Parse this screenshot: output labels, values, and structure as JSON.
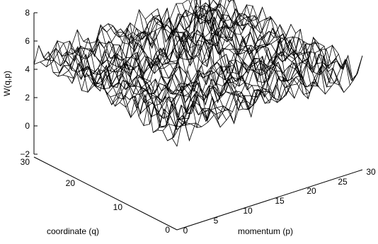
{
  "chart_data": {
    "type": "surface",
    "title": "",
    "zlabel": "W(q,p)",
    "xlabel": "momentum (p)",
    "ylabel": "coordinate (q)",
    "z_ticks": [
      "8",
      "6",
      "4",
      "2",
      "0",
      "−2"
    ],
    "p_ticks": [
      "0",
      "5",
      "10",
      "15",
      "20",
      "25",
      "30"
    ],
    "q_ticks": [
      "0",
      "10",
      "20",
      "30"
    ],
    "zlim": [
      -2,
      8
    ],
    "p_range": [
      0,
      30
    ],
    "q_range": [
      0,
      30
    ],
    "grid_size": 30,
    "peak": {
      "p": 16,
      "q": 15,
      "value": 7.2
    },
    "line_color": "#000000",
    "background": "#ffffff"
  }
}
